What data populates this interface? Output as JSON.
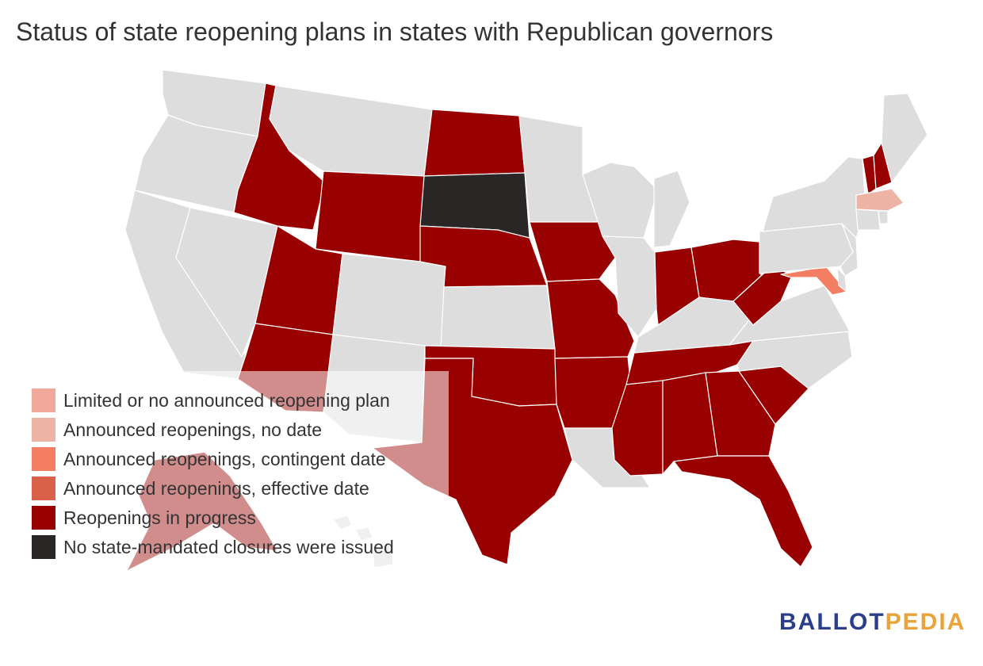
{
  "title": "Status of state reopening plans in states with Republican governors",
  "legend": [
    {
      "label": "Limited or no announced reopening plan",
      "color": "#f2a99b"
    },
    {
      "label": "Announced reopenings, no date",
      "color": "#edb4a6"
    },
    {
      "label": "Announced reopenings, contingent date",
      "color": "#f47e63"
    },
    {
      "label": "Announced reopenings, effective date",
      "color": "#d9614a"
    },
    {
      "label": "Reopenings in progress",
      "color": "#990000"
    },
    {
      "label": "No state-mandated closures were issued",
      "color": "#2b2626"
    }
  ],
  "no_data_color": "#dddddd",
  "states": [
    {
      "name": "Washington",
      "status": null
    },
    {
      "name": "Oregon",
      "status": null
    },
    {
      "name": "California",
      "status": null
    },
    {
      "name": "Nevada",
      "status": null
    },
    {
      "name": "Idaho",
      "status": "Reopenings in progress"
    },
    {
      "name": "Montana",
      "status": null
    },
    {
      "name": "Wyoming",
      "status": "Reopenings in progress"
    },
    {
      "name": "Utah",
      "status": "Reopenings in progress"
    },
    {
      "name": "Arizona",
      "status": "Reopenings in progress"
    },
    {
      "name": "Colorado",
      "status": null
    },
    {
      "name": "New Mexico",
      "status": null
    },
    {
      "name": "North Dakota",
      "status": "Reopenings in progress"
    },
    {
      "name": "South Dakota",
      "status": "No state-mandated closures were issued"
    },
    {
      "name": "Nebraska",
      "status": "Reopenings in progress"
    },
    {
      "name": "Kansas",
      "status": null
    },
    {
      "name": "Oklahoma",
      "status": "Reopenings in progress"
    },
    {
      "name": "Texas",
      "status": "Reopenings in progress"
    },
    {
      "name": "Minnesota",
      "status": null
    },
    {
      "name": "Iowa",
      "status": "Reopenings in progress"
    },
    {
      "name": "Missouri",
      "status": "Reopenings in progress"
    },
    {
      "name": "Arkansas",
      "status": "Reopenings in progress"
    },
    {
      "name": "Louisiana",
      "status": null
    },
    {
      "name": "Wisconsin",
      "status": null
    },
    {
      "name": "Illinois",
      "status": null
    },
    {
      "name": "Michigan",
      "status": null
    },
    {
      "name": "Indiana",
      "status": "Reopenings in progress"
    },
    {
      "name": "Ohio",
      "status": "Reopenings in progress"
    },
    {
      "name": "Kentucky",
      "status": null
    },
    {
      "name": "Tennessee",
      "status": "Reopenings in progress"
    },
    {
      "name": "Mississippi",
      "status": "Reopenings in progress"
    },
    {
      "name": "Alabama",
      "status": "Reopenings in progress"
    },
    {
      "name": "Georgia",
      "status": "Reopenings in progress"
    },
    {
      "name": "Florida",
      "status": "Reopenings in progress"
    },
    {
      "name": "South Carolina",
      "status": "Reopenings in progress"
    },
    {
      "name": "North Carolina",
      "status": null
    },
    {
      "name": "Virginia",
      "status": null
    },
    {
      "name": "West Virginia",
      "status": "Reopenings in progress"
    },
    {
      "name": "Maryland",
      "status": "Announced reopenings, contingent date"
    },
    {
      "name": "Pennsylvania",
      "status": null
    },
    {
      "name": "New York",
      "status": null
    },
    {
      "name": "New Jersey",
      "status": null
    },
    {
      "name": "Delaware",
      "status": null
    },
    {
      "name": "Vermont",
      "status": "Reopenings in progress"
    },
    {
      "name": "New Hampshire",
      "status": "Reopenings in progress"
    },
    {
      "name": "Maine",
      "status": null
    },
    {
      "name": "Massachusetts",
      "status": "Announced reopenings, no date"
    },
    {
      "name": "Connecticut",
      "status": null
    },
    {
      "name": "Rhode Island",
      "status": null
    },
    {
      "name": "Alaska",
      "status": "Reopenings in progress"
    },
    {
      "name": "Hawaii",
      "status": null
    }
  ],
  "logo": {
    "part1": "BALLOT",
    "part2": "PEDIA"
  }
}
